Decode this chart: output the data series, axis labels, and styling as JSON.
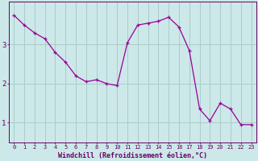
{
  "x": [
    0,
    1,
    2,
    3,
    4,
    5,
    6,
    7,
    8,
    9,
    10,
    11,
    12,
    13,
    14,
    15,
    16,
    17,
    18,
    19,
    20,
    21,
    22,
    23
  ],
  "y": [
    3.75,
    3.5,
    3.3,
    3.15,
    2.8,
    2.55,
    2.2,
    2.05,
    2.1,
    2.0,
    1.95,
    3.05,
    3.5,
    3.55,
    3.6,
    3.7,
    3.45,
    2.85,
    1.35,
    1.05,
    1.5,
    1.35,
    0.95,
    0.95
  ],
  "line_color": "#990099",
  "marker": "+",
  "bg_color": "#cce8e8",
  "grid_color": "#aacccc",
  "xlabel": "Windchill (Refroidissement éolien,°C)",
  "xtick_labels": [
    "0",
    "1",
    "2",
    "3",
    "4",
    "5",
    "6",
    "7",
    "8",
    "9",
    "10",
    "11",
    "12",
    "13",
    "14",
    "15",
    "16",
    "17",
    "18",
    "19",
    "20",
    "21",
    "22",
    "23"
  ],
  "ytick_labels": [
    "1",
    "2",
    "3"
  ],
  "ytick_values": [
    1,
    2,
    3
  ],
  "ylim": [
    0.5,
    4.1
  ],
  "xlim": [
    -0.5,
    23.5
  ],
  "axis_color": "#660066",
  "tick_color": "#660066",
  "label_color": "#660066"
}
